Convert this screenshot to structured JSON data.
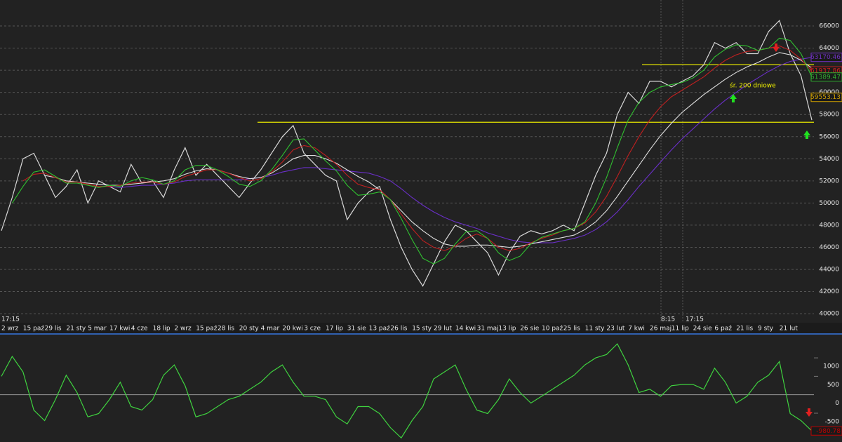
{
  "chart_data": [
    {
      "type": "line",
      "categories": [
        "2 wrz",
        null,
        "15 paź",
        null,
        "29 lis",
        null,
        "21 sty",
        null,
        "5 mar",
        null,
        "17 kwi",
        null,
        "4 cze",
        null,
        "18 lip",
        null,
        "2 wrz",
        null,
        "15 paź",
        null,
        "28 lis",
        null,
        "20 sty",
        null,
        "4 mar",
        null,
        "20 kwi",
        null,
        "3 cze",
        null,
        "17 lip",
        null,
        "31 sie",
        null,
        "13 paź",
        null,
        "26 lis",
        null,
        "15 sty",
        null,
        "29 lut",
        null,
        "14 kwi",
        null,
        "31 maj",
        null,
        "13 lip",
        null,
        "26 sie",
        null,
        "10 paź",
        null,
        "25 lis",
        null,
        "11 sty",
        null,
        "23 lut",
        null,
        "7 kwi",
        null,
        "26 maj",
        null,
        "11 lip",
        null,
        "24 sie",
        null,
        "6 paź",
        null,
        "21 lis",
        null,
        "9 sty",
        null,
        "21 lut",
        null,
        null,
        null
      ],
      "series": [
        {
          "color": "#d8d8d8",
          "values": [
            47500,
            50500,
            54000,
            54500,
            52500,
            50500,
            51500,
            53000,
            50000,
            52000,
            51500,
            51000,
            53500,
            51800,
            52000,
            50500,
            53000,
            55000,
            52500,
            53500,
            52500,
            51500,
            50500,
            51800,
            53000,
            54500,
            56000,
            57000,
            54500,
            53500,
            52500,
            52000,
            48500,
            50000,
            51000,
            51500,
            48500,
            46000,
            44000,
            42500,
            44500,
            46500,
            48000,
            47500,
            46500,
            45500,
            43500,
            45500,
            47000,
            47500,
            47200,
            47500,
            48000,
            47500,
            50000,
            52500,
            54500,
            58000,
            60000,
            59000,
            61000,
            61000,
            60500,
            61000,
            61500,
            62500,
            64500,
            64000,
            64500,
            63500,
            63500,
            65500,
            66500,
            63500,
            61500,
            57500
          ]
        },
        {
          "color": "#6a2fc8",
          "values": [
            null,
            null,
            null,
            null,
            null,
            null,
            null,
            null,
            null,
            null,
            51500,
            51400,
            51500,
            51600,
            51600,
            51700,
            51800,
            52000,
            52100,
            52100,
            52100,
            52100,
            52100,
            52200,
            52300,
            52500,
            52800,
            53000,
            53200,
            53200,
            53100,
            53000,
            52900,
            52800,
            52700,
            52400,
            52000,
            51300,
            50500,
            49800,
            49200,
            48700,
            48300,
            48000,
            47700,
            47300,
            47000,
            46700,
            46500,
            46400,
            46400,
            46400,
            46600,
            46800,
            47100,
            47600,
            48300,
            49200,
            50300,
            51500,
            52600,
            53700,
            54800,
            55800,
            56700,
            57600,
            58500,
            59300,
            60000,
            60700,
            61300,
            61900,
            62400,
            62800,
            63000,
            63170.46
          ]
        },
        {
          "color": "#e0e0e0",
          "values": [
            null,
            null,
            null,
            null,
            52500,
            52300,
            52000,
            51900,
            51800,
            51700,
            51600,
            51600,
            51700,
            51800,
            51900,
            52000,
            52200,
            52600,
            52900,
            53100,
            53000,
            52700,
            52400,
            52200,
            52300,
            52700,
            53300,
            54000,
            54300,
            54300,
            54000,
            53600,
            53000,
            52400,
            51900,
            51200,
            50300,
            49300,
            48300,
            47500,
            46800,
            46300,
            46100,
            46100,
            46200,
            46200,
            46100,
            46000,
            46100,
            46300,
            46500,
            46700,
            46900,
            47100,
            47600,
            48300,
            49300,
            50600,
            52000,
            53400,
            54800,
            56100,
            57200,
            58200,
            59000,
            59800,
            60500,
            61200,
            61800,
            62300,
            62700,
            63200,
            63600,
            63400,
            62900,
            62200
          ]
        },
        {
          "color": "#c02020",
          "values": [
            null,
            null,
            52000,
            52600,
            52700,
            52300,
            51900,
            51900,
            51700,
            51500,
            51500,
            51600,
            51800,
            51900,
            51900,
            51700,
            51900,
            52400,
            52700,
            53000,
            53000,
            52700,
            52300,
            52000,
            52200,
            52800,
            53700,
            54800,
            55200,
            55000,
            54300,
            53500,
            52500,
            51700,
            51400,
            51200,
            50300,
            49000,
            47700,
            46600,
            46000,
            45700,
            46100,
            46800,
            47200,
            46800,
            46000,
            45700,
            45900,
            46400,
            46800,
            47100,
            47500,
            47700,
            48200,
            49200,
            50600,
            52400,
            54300,
            56000,
            57500,
            58700,
            59600,
            60200,
            60800,
            61400,
            62200,
            62900,
            63400,
            63700,
            63800,
            64000,
            64200,
            63800,
            63000,
            61937.86
          ]
        },
        {
          "color": "#30c030",
          "values": [
            null,
            50000,
            51500,
            52800,
            53000,
            52400,
            51800,
            51800,
            51600,
            51400,
            51600,
            51500,
            52000,
            52300,
            52100,
            51700,
            52000,
            53000,
            53400,
            53400,
            53000,
            52400,
            51700,
            51500,
            52000,
            53000,
            54300,
            55700,
            55800,
            54800,
            53800,
            52900,
            51600,
            50700,
            50800,
            51000,
            50300,
            48600,
            46700,
            45000,
            44500,
            45000,
            46300,
            47400,
            47500,
            46800,
            45500,
            44800,
            45200,
            46300,
            46900,
            47200,
            47500,
            47700,
            48300,
            50000,
            52300,
            55000,
            57500,
            59100,
            60000,
            60500,
            60700,
            60900,
            61300,
            62000,
            63200,
            63900,
            64300,
            64200,
            63800,
            64000,
            64900,
            64700,
            63500,
            61389.47
          ]
        }
      ],
      "ylim": [
        39180,
        68350
      ],
      "yticks": [
        40000,
        42000,
        44000,
        46000,
        48000,
        50000,
        52000,
        54000,
        56000,
        58000,
        60000,
        62000,
        64000,
        66000
      ],
      "grid": true,
      "hlines": [
        {
          "value": 57300,
          "color": "#e6e600"
        },
        {
          "value": 62500,
          "color": "#e6e600"
        }
      ],
      "value_boxes": [
        {
          "value": 63170.46,
          "color": "#7030c0"
        },
        {
          "value": 61937.86,
          "color": "#d02020"
        },
        {
          "value": 61389.47,
          "color": "#30b030"
        },
        {
          "value": 59553.13,
          "color": "#d0a000"
        }
      ],
      "annotation": "śr. 200 dniowe",
      "time_labels": [
        "17:15",
        "8:15",
        "17:15"
      ]
    },
    {
      "type": "line",
      "series": [
        {
          "color": "#3fd23f",
          "values": [
            500,
            1040,
            620,
            -415,
            -700,
            -130,
            530,
            60,
            -600,
            -510,
            -130,
            340,
            -320,
            -415,
            -130,
            530,
            810,
            245,
            -600,
            -510,
            -320,
            -130,
            -40,
            150,
            340,
            620,
            810,
            340,
            -40,
            -40,
            -130,
            -600,
            -790,
            -320,
            -320,
            -510,
            -890,
            -1170,
            -700,
            -320,
            430,
            620,
            810,
            150,
            -415,
            -510,
            -130,
            430,
            60,
            -225,
            -40,
            150,
            340,
            530,
            810,
            1000,
            1090,
            1380,
            810,
            60,
            150,
            -40,
            245,
            280,
            280,
            150,
            720,
            340,
            -225,
            -40,
            340,
            530,
            900,
            -510,
            -700,
            -980
          ]
        }
      ],
      "ylim": [
        -1280,
        1610
      ],
      "yticks": [
        1000,
        500,
        0,
        -500
      ],
      "value_boxes": [
        {
          "value": -980.78,
          "color": "#c00000"
        }
      ]
    }
  ]
}
